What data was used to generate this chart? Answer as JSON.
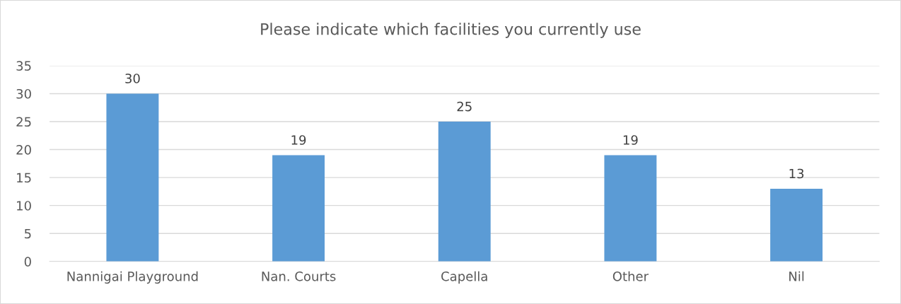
{
  "chart_data": {
    "type": "bar",
    "title": "Please indicate which facilities you currently use",
    "categories": [
      "Nannigai Playground",
      "Nan. Courts",
      "Capella",
      "Other",
      "Nil"
    ],
    "values": [
      30,
      19,
      25,
      19,
      13
    ],
    "color": "#5b9bd5",
    "ylim": [
      0,
      35
    ],
    "yticks": [
      0,
      5,
      10,
      15,
      20,
      25,
      30,
      35
    ],
    "grid": "y",
    "data_labels": true,
    "legend": false
  }
}
